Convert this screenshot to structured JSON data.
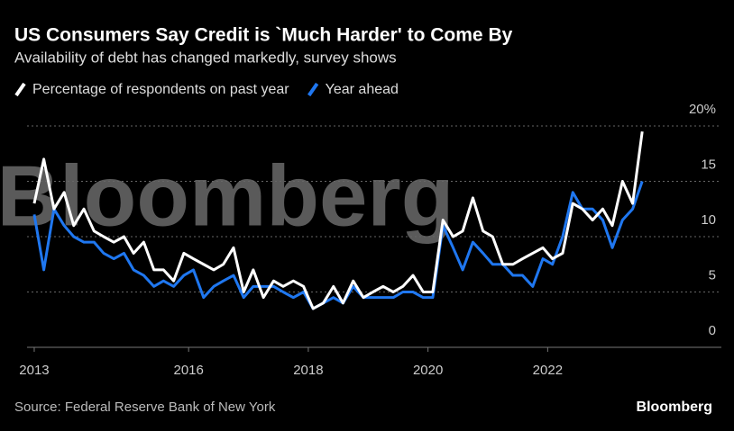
{
  "chart_data": {
    "type": "line",
    "title": "US Consumers Say Credit is `Much Harder' to Come By",
    "subtitle": "Availability of debt has changed markedly, survey shows",
    "source": "Source: Federal Reserve Bank of New York",
    "watermark": "Bloomberg",
    "logo": "Bloomberg",
    "x": [
      2013.42,
      2013.58,
      2013.75,
      2013.92,
      2014.08,
      2014.25,
      2014.42,
      2014.58,
      2014.75,
      2014.92,
      2015.08,
      2015.25,
      2015.42,
      2015.58,
      2015.75,
      2015.92,
      2016.08,
      2016.25,
      2016.42,
      2016.58,
      2016.75,
      2016.92,
      2017.08,
      2017.25,
      2017.42,
      2017.58,
      2017.75,
      2017.92,
      2018.08,
      2018.25,
      2018.42,
      2018.58,
      2018.75,
      2018.92,
      2019.08,
      2019.25,
      2019.42,
      2019.58,
      2019.75,
      2019.92,
      2020.08,
      2020.25,
      2020.42,
      2020.58,
      2020.75,
      2020.92,
      2021.08,
      2021.25,
      2021.42,
      2021.58,
      2021.75,
      2021.92,
      2022.08,
      2022.25,
      2022.42,
      2022.58,
      2022.75,
      2022.92,
      2023.08,
      2023.25,
      2023.42,
      2023.58
    ],
    "series": [
      {
        "name": "Percentage of respondents on past year",
        "color": "#ffffff",
        "values": [
          13,
          17,
          12.5,
          14,
          11,
          12.5,
          10.5,
          10,
          9.5,
          10,
          8.5,
          9.5,
          7,
          7,
          6,
          8.5,
          8,
          7.5,
          7,
          7.5,
          9,
          5,
          7,
          4.5,
          6,
          5.5,
          6,
          5.5,
          3.5,
          4,
          5.5,
          4,
          6,
          4.5,
          5,
          5.5,
          5,
          5.5,
          6.5,
          5,
          5,
          11.5,
          10,
          10.5,
          13.5,
          10.5,
          10,
          7.5,
          7.5,
          8,
          8.5,
          9,
          8,
          8.5,
          13,
          12.5,
          11.5,
          12.5,
          11,
          15,
          13,
          19.5
        ]
      },
      {
        "name": "Year ahead",
        "color": "#1f77f0",
        "values": [
          12,
          7,
          12.5,
          11,
          10,
          9.5,
          9.5,
          8.5,
          8,
          8.5,
          7,
          6.5,
          5.5,
          6,
          5.5,
          6.5,
          7,
          4.5,
          5.5,
          6,
          6.5,
          4.5,
          5.5,
          5.5,
          5.5,
          5,
          4.5,
          5,
          3.5,
          4,
          4.5,
          4,
          5.5,
          4.5,
          4.5,
          4.5,
          4.5,
          5,
          5,
          4.5,
          4.5,
          11,
          9,
          7,
          9.5,
          8.5,
          7.5,
          7.5,
          6.5,
          6.5,
          5.5,
          8,
          7.5,
          10,
          14,
          12.5,
          12.5,
          11.5,
          9,
          11.5,
          12.5,
          15
        ]
      }
    ],
    "xlim": [
      2013.3,
      2024.3
    ],
    "xticks": [
      {
        "value": 2013.42,
        "label": "2013"
      },
      2016,
      2018,
      2020,
      2022
    ],
    "ylim": [
      0,
      20
    ],
    "yticks": [
      0,
      5,
      10,
      15,
      {
        "value": 20,
        "label": "20%"
      }
    ],
    "grid": true
  }
}
